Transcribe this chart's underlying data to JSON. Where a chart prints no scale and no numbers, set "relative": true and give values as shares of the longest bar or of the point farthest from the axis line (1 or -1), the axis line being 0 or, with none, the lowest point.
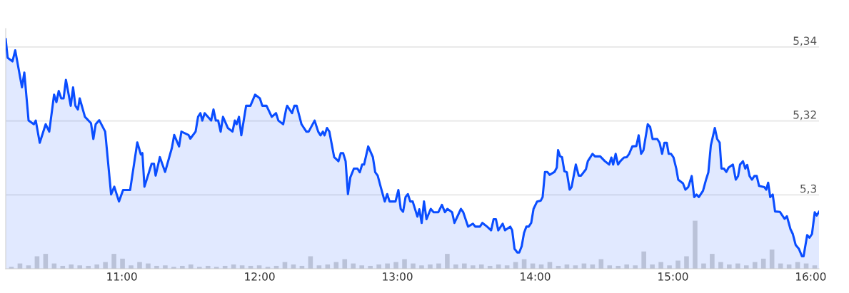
{
  "chart_data": [
    {
      "type": "area",
      "x": [
        10.157,
        10.171,
        10.206,
        10.226,
        10.275,
        10.292,
        10.323,
        10.361,
        10.375,
        10.404,
        10.447,
        10.473,
        10.508,
        10.525,
        10.542,
        10.56,
        10.577,
        10.594,
        10.629,
        10.646,
        10.663,
        10.681,
        10.694,
        10.732,
        10.776,
        10.793,
        10.81,
        10.836,
        10.879,
        10.922,
        10.945,
        10.979,
        11.009,
        11.06,
        11.112,
        11.138,
        11.149,
        11.164,
        11.216,
        11.233,
        11.245,
        11.276,
        11.314,
        11.363,
        11.38,
        11.415,
        11.432,
        11.484,
        11.497,
        11.535,
        11.553,
        11.57,
        11.584,
        11.601,
        11.648,
        11.665,
        11.682,
        11.699,
        11.717,
        11.734,
        11.769,
        11.803,
        11.82,
        11.833,
        11.85,
        11.867,
        11.902,
        11.933,
        11.967,
        12.002,
        12.019,
        12.05,
        12.088,
        12.119,
        12.136,
        12.171,
        12.192,
        12.2,
        12.235,
        12.252,
        12.269,
        12.304,
        12.339,
        12.356,
        12.399,
        12.425,
        12.442,
        12.459,
        12.471,
        12.489,
        12.506,
        12.541,
        12.572,
        12.589,
        12.606,
        12.624,
        12.641,
        12.658,
        12.684,
        12.71,
        12.727,
        12.744,
        12.758,
        12.788,
        12.822,
        12.839,
        12.857,
        12.879,
        12.908,
        12.926,
        12.943,
        12.986,
        13.007,
        13.024,
        13.041,
        13.059,
        13.076,
        13.093,
        13.111,
        13.145,
        13.159,
        13.176,
        13.193,
        13.211,
        13.242,
        13.263,
        13.297,
        13.323,
        13.345,
        13.363,
        13.397,
        13.414,
        13.461,
        13.478,
        13.513,
        13.548,
        13.565,
        13.599,
        13.617,
        13.651,
        13.68,
        13.698,
        13.715,
        13.732,
        13.764,
        13.781,
        13.819,
        13.833,
        13.85,
        13.871,
        13.884,
        13.902,
        13.919,
        13.936,
        13.953,
        13.971,
        13.988,
        14.014,
        14.04,
        14.054,
        14.071,
        14.088,
        14.105,
        14.14,
        14.157,
        14.166,
        14.181,
        14.195,
        14.212,
        14.23,
        14.25,
        14.264,
        14.295,
        14.316,
        14.333,
        14.368,
        14.382,
        14.416,
        14.434,
        14.472,
        14.506,
        14.537,
        14.553,
        14.566,
        14.584,
        14.601,
        14.618,
        14.644,
        14.665,
        14.682,
        14.705,
        14.734,
        14.751,
        14.769,
        14.786,
        14.817,
        14.834,
        14.852,
        14.886,
        14.903,
        14.921,
        14.938,
        14.955,
        14.969,
        14.986,
        15.004,
        15.024,
        15.038,
        15.073,
        15.09,
        15.111,
        15.136,
        15.154,
        15.171,
        15.188,
        15.218,
        15.24,
        15.257,
        15.275,
        15.304,
        15.321,
        15.339,
        15.352,
        15.37,
        15.387,
        15.404,
        15.435,
        15.456,
        15.473,
        15.487,
        15.508,
        15.525,
        15.539,
        15.556,
        15.573,
        15.591,
        15.608,
        15.625,
        15.663,
        15.677,
        15.691,
        15.706,
        15.724,
        15.741,
        15.776,
        15.81,
        15.827,
        15.853,
        15.87,
        15.891,
        15.914,
        15.936,
        15.948,
        15.974,
        15.991,
        16.009,
        16.029,
        16.043,
        16.06
      ],
      "series": [
        {
          "color": "#0a4dff",
          "values": [
            5.3421,
            5.3371,
            5.3361,
            5.3391,
            5.3291,
            5.3331,
            5.3201,
            5.3191,
            5.3201,
            5.3141,
            5.3191,
            5.3171,
            5.3271,
            5.3251,
            5.3281,
            5.3261,
            5.3261,
            5.3311,
            5.3241,
            5.3291,
            5.3241,
            5.3231,
            5.3261,
            5.3211,
            5.3194,
            5.3151,
            5.3191,
            5.3202,
            5.3171,
            5.3001,
            5.3022,
            5.2982,
            5.3013,
            5.3013,
            5.3142,
            5.3109,
            5.3113,
            5.3022,
            5.3084,
            5.3084,
            5.3052,
            5.3102,
            5.3062,
            5.3127,
            5.3162,
            5.3131,
            5.3171,
            5.3162,
            5.3152,
            5.3171,
            5.3211,
            5.3221,
            5.3201,
            5.3221,
            5.3201,
            5.3231,
            5.3201,
            5.3201,
            5.3171,
            5.3211,
            5.3181,
            5.3171,
            5.3201,
            5.3191,
            5.3211,
            5.3161,
            5.3241,
            5.3241,
            5.3271,
            5.3261,
            5.3241,
            5.3241,
            5.3211,
            5.3221,
            5.3201,
            5.3191,
            5.3231,
            5.3241,
            5.3221,
            5.3241,
            5.3241,
            5.3191,
            5.3171,
            5.3171,
            5.3201,
            5.3171,
            5.3161,
            5.3171,
            5.3161,
            5.3181,
            5.3171,
            5.3102,
            5.3091,
            5.3113,
            5.3113,
            5.3091,
            5.3002,
            5.3047,
            5.3071,
            5.3071,
            5.3061,
            5.3082,
            5.3082,
            5.3131,
            5.3102,
            5.3061,
            5.3052,
            5.3021,
            5.2982,
            5.3002,
            5.2982,
            5.2982,
            5.3013,
            5.2962,
            5.2954,
            5.2994,
            5.3002,
            5.2982,
            5.2982,
            5.2941,
            5.2961,
            5.2924,
            5.2982,
            5.2934,
            5.2962,
            5.2953,
            5.2953,
            5.2973,
            5.2953,
            5.2962,
            5.2953,
            5.2924,
            5.2962,
            5.2953,
            5.2914,
            5.2922,
            5.2914,
            5.2914,
            5.2924,
            5.2914,
            5.2904,
            5.2934,
            5.2934,
            5.2904,
            5.2922,
            5.2904,
            5.2914,
            5.2904,
            5.2854,
            5.2844,
            5.2844,
            5.2861,
            5.2897,
            5.2914,
            5.2914,
            5.2924,
            5.2962,
            5.2982,
            5.2984,
            5.2994,
            5.3062,
            5.3062,
            5.3054,
            5.3062,
            5.3074,
            5.3121,
            5.3104,
            5.3102,
            5.3064,
            5.3061,
            5.3014,
            5.3021,
            5.3082,
            5.3052,
            5.3052,
            5.3069,
            5.3091,
            5.3111,
            5.3104,
            5.3104,
            5.3091,
            5.3082,
            5.3101,
            5.3082,
            5.3111,
            5.3082,
            5.3091,
            5.3101,
            5.3102,
            5.3111,
            5.3131,
            5.3132,
            5.3161,
            5.3111,
            5.3121,
            5.3191,
            5.3184,
            5.3151,
            5.3151,
            5.3141,
            5.3111,
            5.3141,
            5.3141,
            5.3111,
            5.3111,
            5.3101,
            5.3071,
            5.3041,
            5.3031,
            5.3014,
            5.3021,
            5.3051,
            5.2994,
            5.3001,
            5.2994,
            5.3011,
            5.3041,
            5.3061,
            5.3134,
            5.3181,
            5.3151,
            5.3141,
            5.3071,
            5.3071,
            5.3062,
            5.3074,
            5.3082,
            5.3041,
            5.3051,
            5.3082,
            5.3091,
            5.3071,
            5.3081,
            5.3051,
            5.3041,
            5.3051,
            5.3051,
            5.3024,
            5.3021,
            5.3014,
            5.3033,
            5.2994,
            5.3001,
            5.2955,
            5.2954,
            5.2935,
            5.2942,
            5.2907,
            5.2894,
            5.2864,
            5.2854,
            5.2834,
            5.2834,
            5.2891,
            5.2884,
            5.2894,
            5.2953,
            5.2944,
            5.2954
          ]
        }
      ],
      "xlim": [
        10.157,
        16.06
      ],
      "xticks": [
        {
          "value": 11,
          "label": "11:00"
        },
        {
          "value": 12,
          "label": "12:00"
        },
        {
          "value": 13,
          "label": "13:00"
        },
        {
          "value": 14,
          "label": "14:00"
        },
        {
          "value": 15,
          "label": "15:00"
        },
        {
          "value": 16,
          "label": "16:00"
        }
      ],
      "ylim": [
        5.28,
        5.345
      ],
      "yticks": [
        {
          "value": 5.3,
          "label": "5,3"
        },
        {
          "value": 5.32,
          "label": "5,32"
        },
        {
          "value": 5.34,
          "label": "5,34"
        }
      ],
      "grid": "y",
      "legend": false,
      "marker": "none",
      "line_style": "solid"
    },
    {
      "type": "bar",
      "relative": true,
      "color": "#d3d3d3",
      "categories": [
        null,
        null,
        null,
        null,
        null,
        null,
        null,
        null,
        null,
        null,
        null,
        null,
        null,
        null,
        null,
        null,
        null,
        null,
        null,
        null,
        null,
        null,
        null,
        null,
        null,
        null,
        null,
        null,
        null,
        null,
        null,
        null,
        null,
        null,
        null,
        null,
        null,
        null,
        null,
        null,
        null,
        null,
        null,
        null,
        null,
        null,
        null,
        null,
        null,
        null,
        null,
        null,
        null,
        null,
        null,
        null,
        null,
        null,
        null,
        null,
        null,
        null,
        null,
        null,
        null,
        null,
        null,
        null,
        null,
        null,
        null,
        null,
        null,
        null,
        null,
        null,
        null,
        null,
        null,
        null,
        null,
        null,
        null,
        null,
        null,
        null,
        null,
        null,
        null,
        null,
        null,
        null,
        null,
        null,
        null
      ],
      "values": [
        0.04,
        0.11,
        0.07,
        0.26,
        0.31,
        0.11,
        0.06,
        0.09,
        0.07,
        0.06,
        0.09,
        0.14,
        0.31,
        0.21,
        0.07,
        0.14,
        0.11,
        0.06,
        0.07,
        0.04,
        0.06,
        0.09,
        0.04,
        0.06,
        0.04,
        0.06,
        0.09,
        0.07,
        0.06,
        0.07,
        0.04,
        0.06,
        0.14,
        0.09,
        0.06,
        0.26,
        0.07,
        0.09,
        0.14,
        0.2,
        0.11,
        0.07,
        0.06,
        0.09,
        0.11,
        0.14,
        0.2,
        0.11,
        0.07,
        0.09,
        0.11,
        0.31,
        0.09,
        0.11,
        0.07,
        0.09,
        0.06,
        0.09,
        0.07,
        0.14,
        0.2,
        0.11,
        0.09,
        0.14,
        0.06,
        0.09,
        0.07,
        0.11,
        0.09,
        0.2,
        0.07,
        0.06,
        0.09,
        0.07,
        0.36,
        0.09,
        0.14,
        0.07,
        0.17,
        0.26,
        1,
        0.11,
        0.31,
        0.14,
        0.09,
        0.11,
        0.07,
        0.14,
        0.21,
        0.4,
        0.11,
        0.09,
        0.14,
        0.11,
        0.07
      ]
    }
  ]
}
